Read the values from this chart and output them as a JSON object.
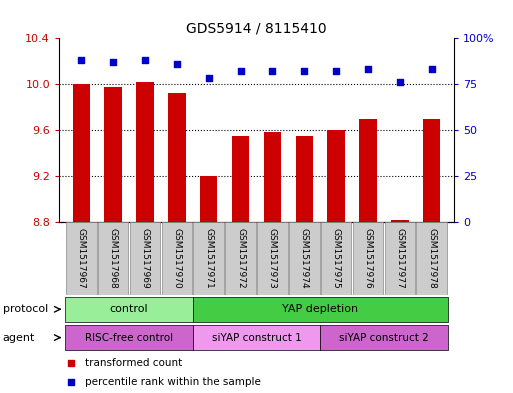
{
  "title": "GDS5914 / 8115410",
  "samples": [
    "GSM1517967",
    "GSM1517968",
    "GSM1517969",
    "GSM1517970",
    "GSM1517971",
    "GSM1517972",
    "GSM1517973",
    "GSM1517974",
    "GSM1517975",
    "GSM1517976",
    "GSM1517977",
    "GSM1517978"
  ],
  "transformed_count": [
    10.0,
    9.97,
    10.02,
    9.92,
    9.2,
    9.55,
    9.58,
    9.55,
    9.6,
    9.7,
    8.82,
    9.7
  ],
  "percentile_rank": [
    88,
    87,
    88,
    86,
    78,
    82,
    82,
    82,
    82,
    83,
    76,
    83
  ],
  "ylim_left": [
    8.8,
    10.4
  ],
  "ylim_right": [
    0,
    100
  ],
  "yticks_left": [
    8.8,
    9.2,
    9.6,
    10.0,
    10.4
  ],
  "yticks_right": [
    0,
    25,
    50,
    75,
    100
  ],
  "bar_color": "#cc0000",
  "dot_color": "#0000cc",
  "protocol_groups": [
    {
      "label": "control",
      "start": 0,
      "end": 4,
      "color": "#99ee99"
    },
    {
      "label": "YAP depletion",
      "start": 4,
      "end": 12,
      "color": "#44cc44"
    }
  ],
  "agent_groups": [
    {
      "label": "RISC-free control",
      "start": 0,
      "end": 4,
      "color": "#cc66cc"
    },
    {
      "label": "siYAP construct 1",
      "start": 4,
      "end": 8,
      "color": "#ee99ee"
    },
    {
      "label": "siYAP construct 2",
      "start": 8,
      "end": 12,
      "color": "#cc66cc"
    }
  ],
  "legend_items": [
    {
      "label": "transformed count",
      "color": "#cc0000"
    },
    {
      "label": "percentile rank within the sample",
      "color": "#0000cc"
    }
  ],
  "protocol_label": "protocol",
  "agent_label": "agent",
  "background_color": "#ffffff",
  "plot_bg_color": "#ffffff",
  "grid_color": "#000000",
  "tick_label_color_left": "#cc0000",
  "tick_label_color_right": "#0000cc",
  "xtick_bg_color": "#cccccc",
  "bar_bottom": 8.8
}
